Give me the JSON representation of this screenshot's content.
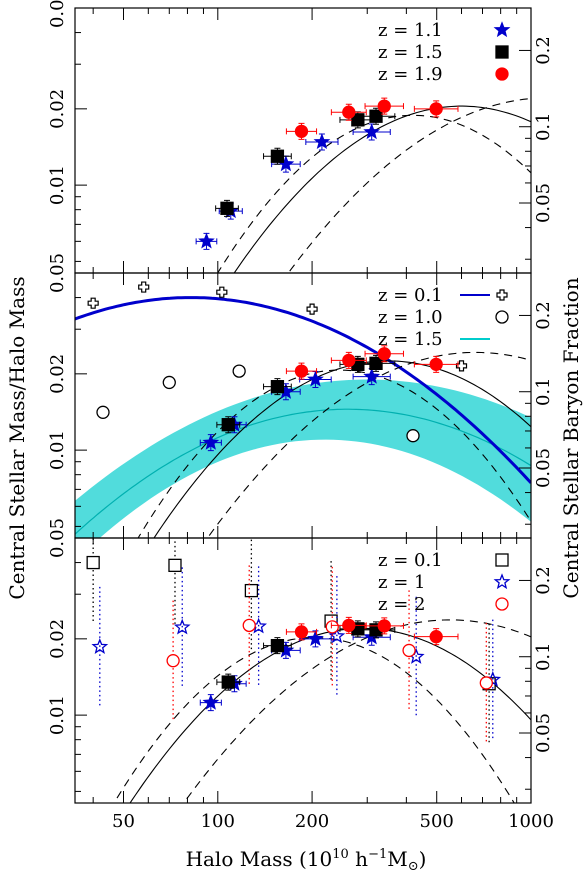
{
  "chart_data": {
    "type": "scatter",
    "xlabel": "Halo Mass (10^10 h^-1 M_⊙)",
    "xlabel_main": "Halo Mass (10",
    "xlabel_exp1": "10",
    "xlabel_h": " h",
    "xlabel_exp2": "−1",
    "xlabel_m": "M",
    "xlabel_sun": "⊙",
    "xlabel_close": ")",
    "ylabel_left": "Central Stellar Mass/Halo Mass",
    "ylabel_right": "Central Stellar Baryon Fraction",
    "x_scale": "log",
    "x_range": [
      35,
      1000
    ],
    "x_ticks": [
      50,
      100,
      200,
      500,
      1000
    ],
    "y_scale": "log",
    "y_range": [
      0.0045,
      0.05
    ],
    "y_ticks": [
      0.01,
      0.02,
      0.05
    ],
    "y_ticklabels": [
      "0.01",
      "0.02",
      "0.05"
    ],
    "right_ticks": [
      0.05,
      0.1,
      0.2
    ],
    "right_ticklabels": [
      "0.05",
      "0.1",
      "0.2"
    ],
    "panels": [
      {
        "legend": [
          {
            "label": "z = 1.1",
            "marker": "star-filled",
            "color": "#0000cc"
          },
          {
            "label": "z = 1.5",
            "marker": "square-filled",
            "color": "#000000"
          },
          {
            "label": "z = 1.9",
            "marker": "circle-filled",
            "color": "#ff0000"
          }
        ],
        "series": [
          {
            "name": "z = 1.1",
            "marker": "star-filled",
            "color": "#0000cc",
            "points": [
              [
                92,
                0.006
              ],
              [
                110,
                0.0079
              ],
              [
                165,
                0.0121
              ],
              [
                215,
                0.0148
              ],
              [
                310,
                0.0162
              ]
            ]
          },
          {
            "name": "z = 1.5",
            "marker": "square-filled",
            "color": "#000000",
            "points": [
              [
                107,
                0.0081
              ],
              [
                155,
                0.013
              ],
              [
                280,
                0.0181
              ],
              [
                320,
                0.0187
              ]
            ]
          },
          {
            "name": "z = 1.9",
            "marker": "circle-filled",
            "color": "#ff0000",
            "points": [
              [
                185,
                0.0163
              ],
              [
                262,
                0.0194
              ],
              [
                340,
                0.0205
              ],
              [
                498,
                0.02
              ]
            ]
          }
        ]
      },
      {
        "legend": [
          {
            "label": "z = 0.1",
            "marker": "plus-open",
            "color": "#000000",
            "line": "#0000cc"
          },
          {
            "label": "z = 1.0",
            "marker": "circle-open",
            "color": "#000000"
          },
          {
            "label": "z = 1.5",
            "marker": "none",
            "color": "#000000",
            "line": "#00cccc"
          }
        ],
        "series": [
          {
            "name": "z = 0.1",
            "marker": "plus-open",
            "color": "#000000",
            "points": [
              [
                40,
                0.038
              ],
              [
                58,
                0.044
              ],
              [
                103,
                0.042
              ],
              [
                200,
                0.036
              ],
              [
                600,
                0.0215
              ]
            ]
          },
          {
            "name": "z = 1.0",
            "marker": "circle-open",
            "color": "#000000",
            "points": [
              [
                43,
                0.0141
              ],
              [
                70,
                0.0185
              ],
              [
                117,
                0.0205
              ],
              [
                420,
                0.0114
              ]
            ]
          },
          {
            "name": "z = 1.1",
            "marker": "star-filled",
            "color": "#0000cc",
            "points": [
              [
                95,
                0.0107
              ],
              [
                113,
                0.0126
              ],
              [
                165,
                0.017
              ],
              [
                205,
                0.019
              ],
              [
                310,
                0.0195
              ]
            ]
          },
          {
            "name": "z = 1.5",
            "marker": "square-filled",
            "color": "#000000",
            "points": [
              [
                108,
                0.0126
              ],
              [
                155,
                0.0178
              ],
              [
                280,
                0.0218
              ],
              [
                320,
                0.022
              ]
            ]
          },
          {
            "name": "z = 1.9",
            "marker": "circle-filled",
            "color": "#ff0000",
            "points": [
              [
                185,
                0.0205
              ],
              [
                262,
                0.0226
              ],
              [
                340,
                0.024
              ],
              [
                498,
                0.0218
              ]
            ]
          }
        ]
      },
      {
        "legend": [
          {
            "label": "z = 0.1",
            "marker": "square-open",
            "color": "#000000"
          },
          {
            "label": "z = 1",
            "marker": "star-open",
            "color": "#0000cc"
          },
          {
            "label": "z = 2",
            "marker": "circle-open",
            "color": "#ff0000"
          }
        ],
        "series": [
          {
            "name": "z = 0.1",
            "marker": "square-open",
            "color": "#000000",
            "points": [
              [
                40,
                0.04
              ],
              [
                73,
                0.039
              ],
              [
                128,
                0.031
              ],
              [
                230,
                0.0235
              ],
              [
                735,
                0.0133
              ]
            ]
          },
          {
            "name": "z = 1",
            "marker": "star-open",
            "color": "#0000cc",
            "points": [
              [
                42,
                0.0186
              ],
              [
                77,
                0.0222
              ],
              [
                135,
                0.0224
              ],
              [
                240,
                0.0205
              ],
              [
                430,
                0.017
              ],
              [
                755,
                0.0138
              ]
            ]
          },
          {
            "name": "z = 2",
            "marker": "circle-open",
            "color": "#ff0000",
            "points": [
              [
                72,
                0.0164
              ],
              [
                126,
                0.0226
              ],
              [
                232,
                0.0223
              ],
              [
                408,
                0.018
              ],
              [
                720,
                0.0134
              ]
            ]
          },
          {
            "name": "z = 1.1",
            "marker": "star-filled",
            "color": "#0000cc",
            "points": [
              [
                95,
                0.0112
              ],
              [
                113,
                0.0133
              ],
              [
                165,
                0.018
              ],
              [
                205,
                0.02
              ],
              [
                310,
                0.0203
              ]
            ]
          },
          {
            "name": "z = 1.5",
            "marker": "square-filled",
            "color": "#000000",
            "points": [
              [
                108,
                0.0135
              ],
              [
                155,
                0.0188
              ],
              [
                280,
                0.0219
              ],
              [
                320,
                0.0217
              ]
            ]
          },
          {
            "name": "z = 1.9",
            "marker": "circle-filled",
            "color": "#ff0000",
            "points": [
              [
                185,
                0.0213
              ],
              [
                262,
                0.0226
              ],
              [
                340,
                0.0225
              ],
              [
                498,
                0.0204
              ]
            ]
          }
        ]
      }
    ]
  }
}
